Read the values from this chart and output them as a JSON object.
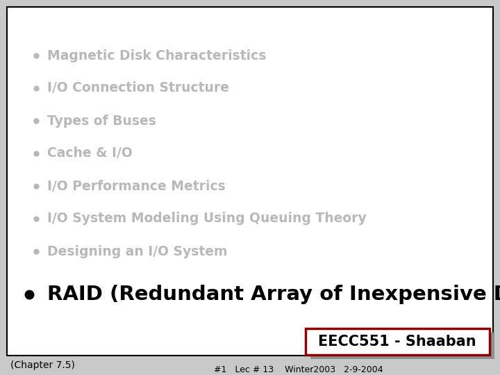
{
  "bg_color": "#c8c8c8",
  "slide_bg": "#ffffff",
  "border_color": "#000000",
  "faded_items": [
    "Magnetic Disk Characteristics",
    "I/O Connection Structure",
    "Types of Buses",
    "Cache & I/O",
    "I/O Performance Metrics",
    "I/O System Modeling Using Queuing Theory",
    "Designing an I/O System"
  ],
  "highlight_item": "RAID (Redundant Array of Inexpensive Disks)",
  "faded_color": "#b8b8b8",
  "highlight_color": "#000000",
  "faded_fontsize": 13.5,
  "highlight_fontsize": 21,
  "chapter_text": "(Chapter 7.5)",
  "chapter_fontsize": 10,
  "footer_text": "#1   Lec # 13    Winter2003   2-9-2004",
  "footer_fontsize": 9,
  "badge_text": "EECC551 - Shaaban",
  "badge_fontsize": 15,
  "badge_bg": "#ffffff",
  "badge_border": "#8b0000",
  "badge_shadow": "#909090"
}
